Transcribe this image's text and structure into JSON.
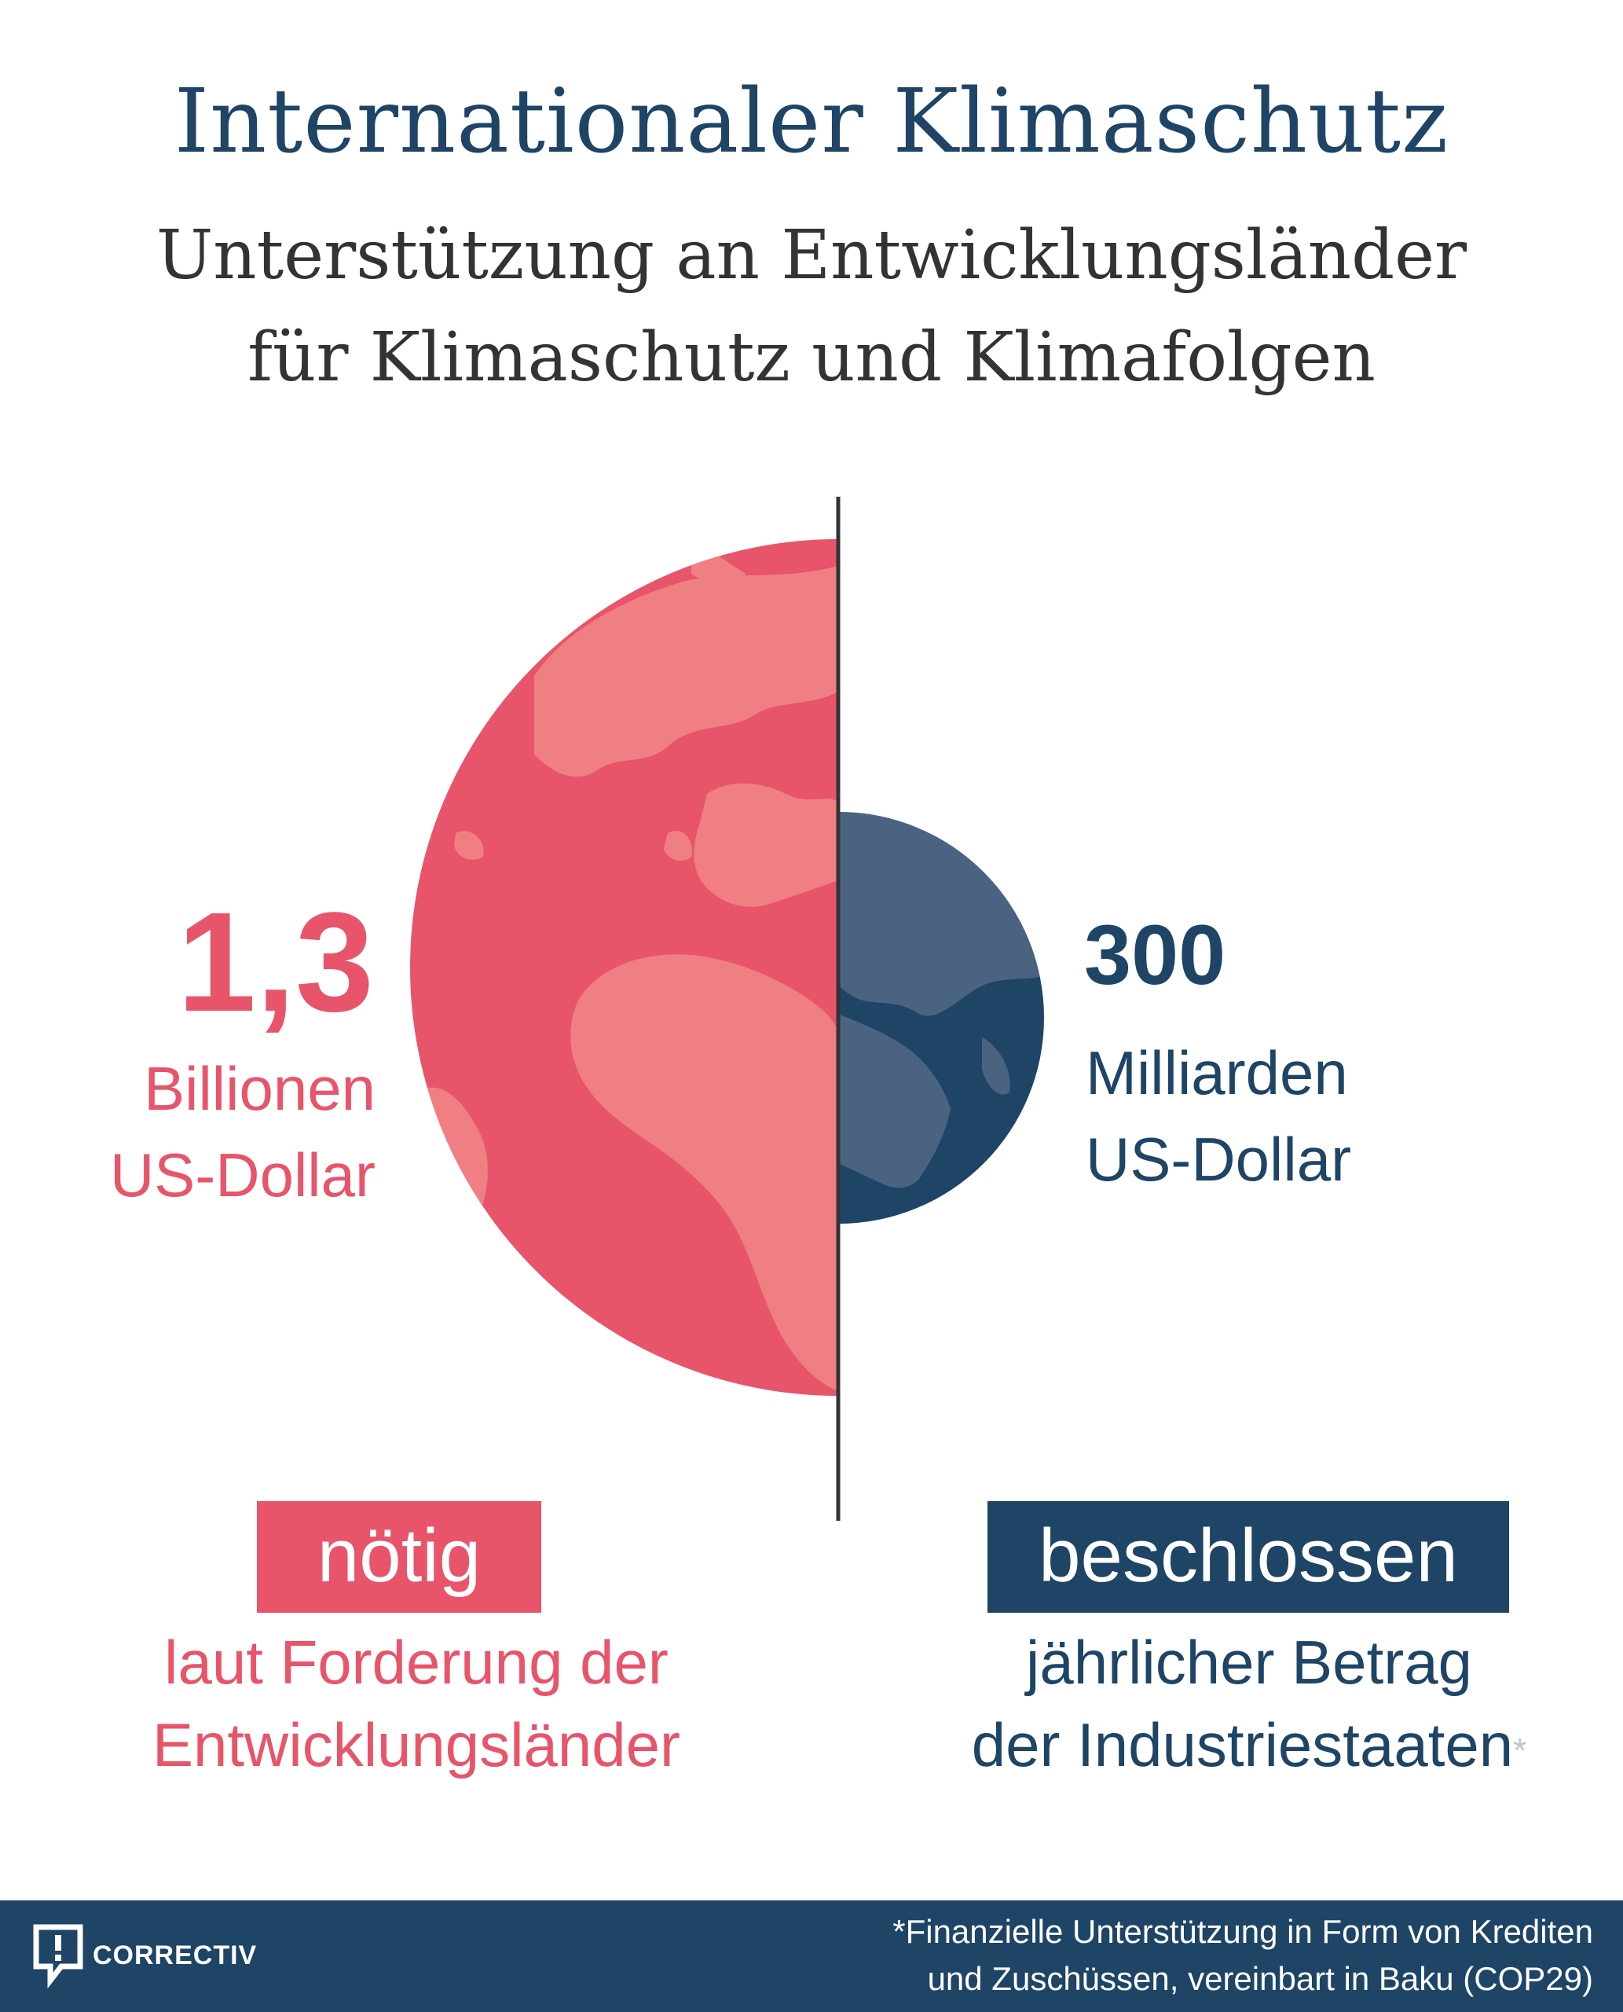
{
  "header": {
    "title": "Internationaler Klimaschutz",
    "subtitle_line1": "Unterstützung an Entwicklungsländer",
    "subtitle_line2": "für Klimaschutz und Klimafolgen"
  },
  "left": {
    "value": "1,3",
    "unit_line1": "Billionen",
    "unit_line2": "US-Dollar",
    "badge": "nötig",
    "desc_line1": "laut Forderung der",
    "desc_line2": "Entwicklungsländer",
    "color": "#e8546a"
  },
  "right": {
    "value": "300",
    "unit_line1": "Milliarden",
    "unit_line2": "US-Dollar",
    "badge": "beschlossen",
    "desc_line1": "jährlicher Betrag",
    "desc_line2": "der Industriestaaten",
    "asterisk": "*",
    "color": "#1e4466"
  },
  "footer": {
    "logo_text": "CORRECTIV",
    "footnote_line1": "*Finanzielle Unterstützung in Form von Krediten",
    "footnote_line2": "und Zuschüssen, vereinbart in Baku (COP29)"
  }
}
